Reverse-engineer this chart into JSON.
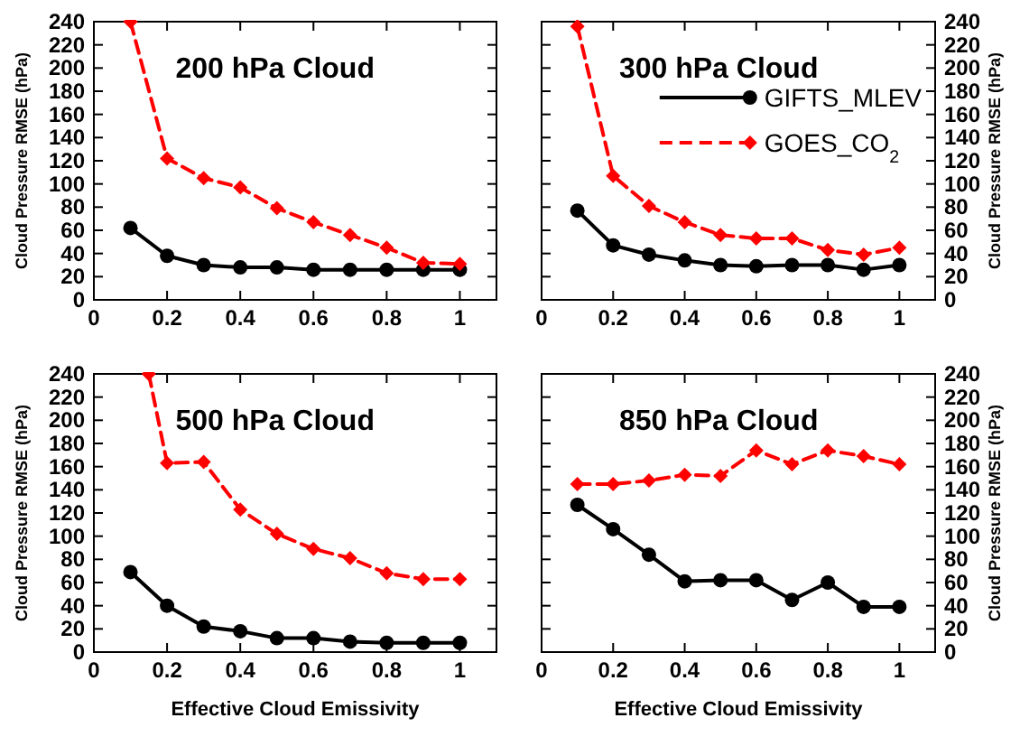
{
  "chart_data": [
    {
      "type": "line",
      "title": "200 hPa Cloud",
      "ylabel": "Cloud Pressure  RMSE (hPa)",
      "x": [
        0.1,
        0.2,
        0.3,
        0.4,
        0.5,
        0.6,
        0.7,
        0.8,
        0.9,
        1
      ],
      "xlim": [
        0,
        1.1
      ],
      "xticks": [
        0,
        0.2,
        0.4,
        0.6,
        0.8,
        1
      ],
      "ylim": [
        0,
        240
      ],
      "yticks": [
        0,
        20,
        40,
        60,
        80,
        100,
        120,
        140,
        160,
        180,
        200,
        220,
        240
      ],
      "legend": false,
      "grid": false,
      "series": [
        {
          "color": "#000000",
          "marker": "circle",
          "line_style": "solid",
          "values": [
            62,
            38,
            30,
            28,
            28,
            26,
            26,
            26,
            26,
            26
          ]
        },
        {
          "color": "#ff0000",
          "marker": "diamond",
          "line_style": "dashed",
          "values": [
            240,
            122,
            105,
            97,
            79,
            67,
            56,
            45,
            32,
            31
          ]
        }
      ]
    },
    {
      "type": "line",
      "title": "300 hPa Cloud",
      "ylabel": "Cloud Pressure  RMSE (hPa)",
      "x": [
        0.1,
        0.2,
        0.3,
        0.4,
        0.5,
        0.6,
        0.7,
        0.8,
        0.9,
        1
      ],
      "xlim": [
        0,
        1.1
      ],
      "xticks": [
        0,
        0.2,
        0.4,
        0.6,
        0.8,
        1
      ],
      "ylim": [
        0,
        240
      ],
      "yticks": [
        0,
        20,
        40,
        60,
        80,
        100,
        120,
        140,
        160,
        180,
        200,
        220,
        240
      ],
      "legend": "top right",
      "grid": false,
      "series": [
        {
          "name": "GIFTS_MLEV",
          "color": "#000000",
          "marker": "circle",
          "line_style": "solid",
          "values": [
            77,
            47,
            39,
            34,
            30,
            29,
            30,
            30,
            26,
            30
          ]
        },
        {
          "name": "GOES_CO$_{2}$",
          "color": "#ff0000",
          "marker": "diamond",
          "line_style": "dashed",
          "values": [
            236,
            107,
            81,
            67,
            56,
            53,
            53,
            43,
            39,
            45
          ]
        }
      ]
    },
    {
      "type": "line",
      "title": "500 hPa Cloud",
      "xlabel": "Effective Cloud Emissivity",
      "ylabel": "Cloud Pressure  RMSE (hPa)",
      "x": [
        0.1,
        0.2,
        0.3,
        0.4,
        0.5,
        0.6,
        0.7,
        0.8,
        0.9,
        1
      ],
      "xlim": [
        0,
        1.1
      ],
      "xticks": [
        0,
        0.2,
        0.4,
        0.6,
        0.8,
        1
      ],
      "ylim": [
        0,
        240
      ],
      "yticks": [
        0,
        20,
        40,
        60,
        80,
        100,
        120,
        140,
        160,
        180,
        200,
        220,
        240
      ],
      "legend": false,
      "grid": false,
      "series": [
        {
          "color": "#000000",
          "marker": "circle",
          "line_style": "solid",
          "values": [
            69,
            40,
            22,
            18,
            12,
            12,
            9,
            8,
            8,
            8
          ]
        },
        {
          "color": "#ff0000",
          "marker": "diamond",
          "line_style": "dashed",
          "x": [
            0.15,
            0.2,
            0.3,
            0.4,
            0.5,
            0.6,
            0.7,
            0.8,
            0.9,
            1
          ],
          "values": [
            240,
            163,
            164,
            123,
            102,
            89,
            81,
            68,
            63,
            63
          ]
        }
      ]
    },
    {
      "type": "line",
      "title": "850 hPa Cloud",
      "xlabel": "Effective Cloud Emissivity",
      "ylabel": "Cloud Pressure  RMSE (hPa)",
      "x": [
        0.1,
        0.2,
        0.3,
        0.4,
        0.5,
        0.6,
        0.7,
        0.8,
        0.9,
        1
      ],
      "xlim": [
        0,
        1.1
      ],
      "xticks": [
        0,
        0.2,
        0.4,
        0.6,
        0.8,
        1
      ],
      "ylim": [
        0,
        240
      ],
      "yticks": [
        0,
        20,
        40,
        60,
        80,
        100,
        120,
        140,
        160,
        180,
        200,
        220,
        240
      ],
      "legend": false,
      "grid": false,
      "series": [
        {
          "color": "#000000",
          "marker": "circle",
          "line_style": "solid",
          "values": [
            127,
            106,
            84,
            61,
            62,
            62,
            45,
            60,
            39,
            39
          ]
        },
        {
          "color": "#ff0000",
          "marker": "diamond",
          "line_style": "dashed",
          "values": [
            145,
            145,
            148,
            153,
            152,
            174,
            162,
            174,
            169,
            162
          ]
        }
      ]
    }
  ]
}
